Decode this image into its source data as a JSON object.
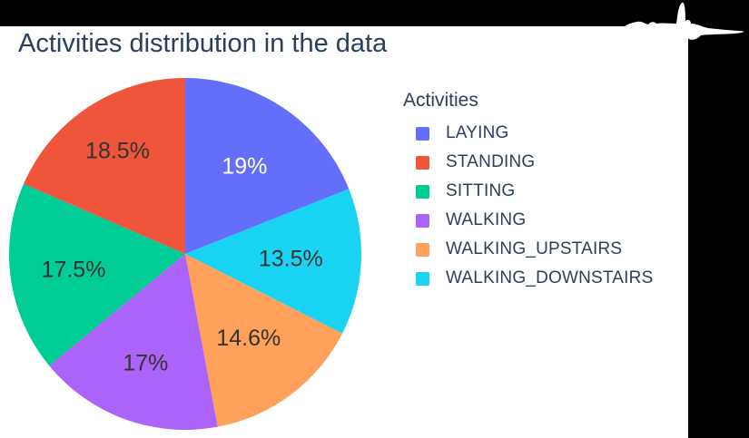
{
  "window": {
    "background_color": "#000000",
    "panel_color": "#ffffff"
  },
  "chart_data": {
    "type": "pie",
    "title": "Activities distribution in the data",
    "title_color": "#2a3f5f",
    "legend_title": "Activities",
    "legend_position": "right",
    "labels": [
      "LAYING",
      "STANDING",
      "SITTING",
      "WALKING",
      "WALKING_UPSTAIRS",
      "WALKING_DOWNSTAIRS"
    ],
    "values": [
      19,
      18.5,
      17.5,
      17,
      14.6,
      13.5
    ],
    "unit": "%",
    "colors": [
      "#636efa",
      "#ef553b",
      "#00cc96",
      "#ab63fa",
      "#ffa15a",
      "#19d3f3"
    ],
    "slice_text": [
      "19%",
      "18.5%",
      "17.5%",
      "17%",
      "14.6%",
      "13.5%"
    ],
    "slice_text_colors": [
      "#ffffff",
      "#333333",
      "#333333",
      "#333333",
      "#333333",
      "#333333"
    ],
    "draw_order_clockwise_from_top": [
      0,
      5,
      4,
      3,
      2,
      1
    ],
    "label_radius_factors": [
      0.6,
      0.7,
      0.64,
      0.66,
      0.6,
      0.6
    ],
    "text_color": "#2a3f5f"
  }
}
